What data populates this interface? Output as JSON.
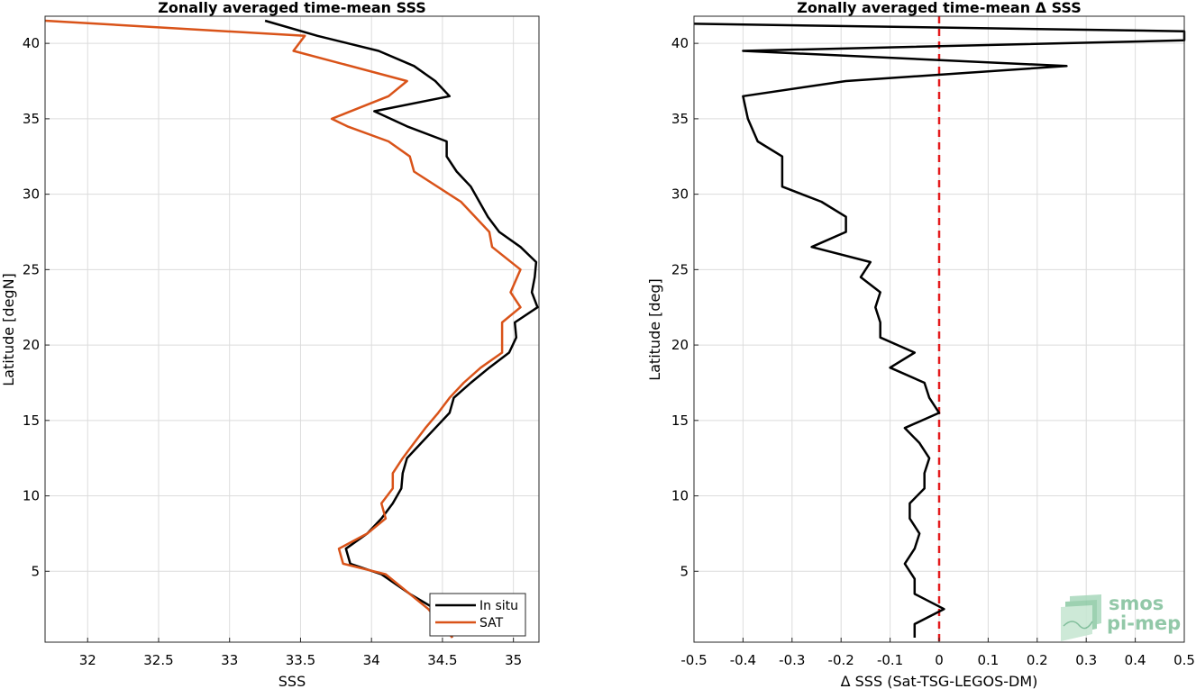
{
  "colors": {
    "insitu": "#000000",
    "sat": "#d95319",
    "zero_line": "#e41a1c",
    "logo": "#7fbf9a"
  },
  "logo": {
    "line1": "smos",
    "line2": "pi-mep"
  },
  "chart_data": [
    {
      "type": "line",
      "title": "Zonally averaged time-mean SSS",
      "xlabel": "SSS",
      "ylabel": "Latitude [degN]",
      "xlim": [
        31.7,
        35.18
      ],
      "ylim": [
        0.3,
        41.8
      ],
      "xticks": [
        "32",
        "32.5",
        "33",
        "33.5",
        "34",
        "34.5",
        "35"
      ],
      "yticks": [
        "5",
        "10",
        "15",
        "20",
        "25",
        "30",
        "35",
        "40"
      ],
      "grid": true,
      "legend": {
        "position": "bottom-right",
        "entries": [
          "In situ",
          "SAT"
        ]
      },
      "series": [
        {
          "name": "In situ",
          "color": "#000000",
          "points": [
            [
              34.57,
              0.6
            ],
            [
              34.45,
              2.5
            ],
            [
              34.27,
              3.5
            ],
            [
              34.07,
              4.8
            ],
            [
              33.85,
              5.5
            ],
            [
              33.82,
              6.5
            ],
            [
              33.97,
              7.5
            ],
            [
              34.07,
              8.5
            ],
            [
              34.15,
              9.5
            ],
            [
              34.21,
              10.5
            ],
            [
              34.22,
              11.5
            ],
            [
              34.25,
              12.5
            ],
            [
              34.35,
              13.5
            ],
            [
              34.45,
              14.5
            ],
            [
              34.55,
              15.5
            ],
            [
              34.58,
              16.5
            ],
            [
              34.7,
              17.5
            ],
            [
              34.83,
              18.5
            ],
            [
              34.97,
              19.5
            ],
            [
              35.02,
              20.5
            ],
            [
              35.01,
              21.5
            ],
            [
              35.17,
              22.5
            ],
            [
              35.13,
              23.5
            ],
            [
              35.15,
              24.5
            ],
            [
              35.16,
              25.5
            ],
            [
              35.05,
              26.5
            ],
            [
              34.9,
              27.5
            ],
            [
              34.82,
              28.5
            ],
            [
              34.7,
              30.5
            ],
            [
              34.6,
              31.5
            ],
            [
              34.53,
              32.5
            ],
            [
              34.53,
              33.5
            ],
            [
              34.25,
              34.5
            ],
            [
              34.02,
              35.5
            ],
            [
              34.55,
              36.5
            ],
            [
              34.45,
              37.5
            ],
            [
              34.3,
              38.5
            ],
            [
              34.05,
              39.5
            ],
            [
              33.62,
              40.5
            ],
            [
              33.25,
              41.5
            ]
          ]
        },
        {
          "name": "SAT",
          "color": "#d95319",
          "points": [
            [
              34.57,
              0.6
            ],
            [
              34.4,
              2.5
            ],
            [
              34.1,
              4.8
            ],
            [
              33.8,
              5.5
            ],
            [
              33.77,
              6.5
            ],
            [
              33.97,
              7.5
            ],
            [
              34.1,
              8.5
            ],
            [
              34.07,
              9.5
            ],
            [
              34.15,
              10.5
            ],
            [
              34.15,
              11.5
            ],
            [
              34.22,
              12.5
            ],
            [
              34.3,
              13.5
            ],
            [
              34.38,
              14.5
            ],
            [
              34.47,
              15.5
            ],
            [
              34.55,
              16.5
            ],
            [
              34.65,
              17.5
            ],
            [
              34.77,
              18.5
            ],
            [
              34.92,
              19.5
            ],
            [
              34.92,
              20.5
            ],
            [
              34.92,
              21.5
            ],
            [
              35.05,
              22.5
            ],
            [
              34.98,
              23.5
            ],
            [
              35.05,
              25.0
            ],
            [
              34.85,
              26.5
            ],
            [
              34.83,
              27.5
            ],
            [
              34.63,
              29.5
            ],
            [
              34.3,
              31.5
            ],
            [
              34.27,
              32.5
            ],
            [
              34.12,
              33.5
            ],
            [
              33.83,
              34.5
            ],
            [
              33.72,
              35.0
            ],
            [
              34.12,
              36.5
            ],
            [
              34.25,
              37.5
            ],
            [
              33.45,
              39.5
            ],
            [
              33.53,
              40.5
            ],
            [
              31.7,
              41.5
            ]
          ]
        }
      ]
    },
    {
      "type": "line",
      "title": "Zonally averaged time-mean Δ SSS",
      "xlabel": "Δ SSS (Sat-TSG-LEGOS-DM)",
      "ylabel": "Latitude [deg]",
      "xlim": [
        -0.5,
        0.5
      ],
      "ylim": [
        0.3,
        41.8
      ],
      "xticks": [
        "-0.5",
        "-0.4",
        "-0.3",
        "-0.2",
        "-0.1",
        "0",
        "0.1",
        "0.2",
        "0.3",
        "0.4",
        "0.5"
      ],
      "yticks": [
        "5",
        "10",
        "15",
        "20",
        "25",
        "30",
        "35",
        "40"
      ],
      "grid": true,
      "series": [
        {
          "color": "#000000",
          "points": [
            [
              -0.05,
              0.6
            ],
            [
              -0.05,
              1.5
            ],
            [
              0.01,
              2.5
            ],
            [
              -0.05,
              3.5
            ],
            [
              -0.05,
              4.5
            ],
            [
              -0.07,
              5.5
            ],
            [
              -0.05,
              6.5
            ],
            [
              -0.04,
              7.5
            ],
            [
              -0.06,
              8.5
            ],
            [
              -0.06,
              9.5
            ],
            [
              -0.03,
              10.5
            ],
            [
              -0.03,
              11.5
            ],
            [
              -0.02,
              12.5
            ],
            [
              -0.04,
              13.5
            ],
            [
              -0.07,
              14.5
            ],
            [
              0.0,
              15.5
            ],
            [
              -0.02,
              16.5
            ],
            [
              -0.03,
              17.5
            ],
            [
              -0.1,
              18.5
            ],
            [
              -0.05,
              19.5
            ],
            [
              -0.12,
              20.5
            ],
            [
              -0.12,
              21.5
            ],
            [
              -0.13,
              22.5
            ],
            [
              -0.12,
              23.5
            ],
            [
              -0.16,
              24.5
            ],
            [
              -0.14,
              25.5
            ],
            [
              -0.26,
              26.5
            ],
            [
              -0.19,
              27.5
            ],
            [
              -0.19,
              28.5
            ],
            [
              -0.24,
              29.5
            ],
            [
              -0.32,
              30.5
            ],
            [
              -0.32,
              32.5
            ],
            [
              -0.37,
              33.5
            ],
            [
              -0.39,
              35.0
            ],
            [
              -0.4,
              36.5
            ],
            [
              -0.19,
              37.5
            ],
            [
              0.26,
              38.5
            ],
            [
              -0.4,
              39.5
            ],
            [
              0.5,
              40.2
            ],
            [
              0.5,
              40.8
            ],
            [
              -0.5,
              41.3
            ]
          ]
        }
      ],
      "reference_line": {
        "x": 0,
        "style": "dashed",
        "color": "#e41a1c"
      }
    }
  ]
}
